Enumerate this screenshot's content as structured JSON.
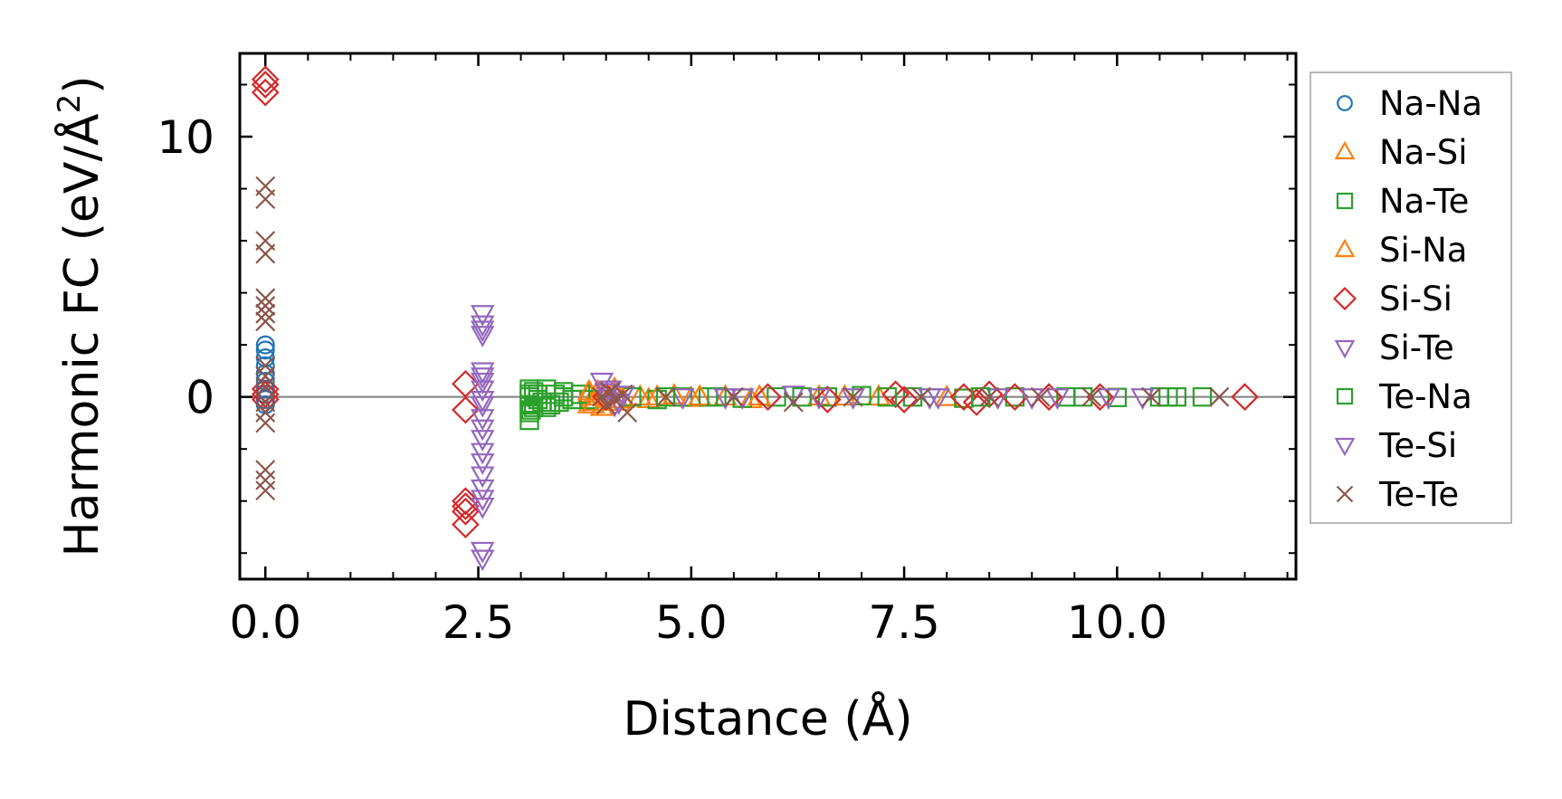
{
  "chart_data": {
    "type": "scatter",
    "title": "",
    "xlabel": "Distance (Å)",
    "ylabel_prefix": "Harmonic FC (eV/Å",
    "ylabel_superscript": "2",
    "ylabel_suffix": ")",
    "xlim": [
      -0.3,
      12.1
    ],
    "ylim": [
      -7.0,
      13.2
    ],
    "xticks": [
      0,
      2.5,
      5,
      7.5,
      10
    ],
    "xtick_labels": [
      "0.0",
      "2.5",
      "5.0",
      "7.5",
      "10.0"
    ],
    "yticks": [
      0,
      10
    ],
    "ytick_labels": [
      "0",
      "10"
    ],
    "y_minor_ticks": [
      -6,
      -4,
      -2,
      2,
      4,
      6,
      8,
      12
    ],
    "x_minor_step": 0.5,
    "grid": false,
    "zero_line": true,
    "legend_position": "outside right",
    "series": [
      {
        "name": "Na-Na",
        "marker": "circle",
        "color": "#1f77b4",
        "points": [
          [
            0,
            2.0
          ],
          [
            0,
            1.8
          ],
          [
            0,
            1.5
          ],
          [
            0,
            1.2
          ],
          [
            0,
            0.9
          ],
          [
            0,
            0.6
          ],
          [
            0,
            0.3
          ],
          [
            0,
            0.1
          ],
          [
            0,
            -0.1
          ],
          [
            0,
            -0.3
          ]
        ]
      },
      {
        "name": "Na-Si",
        "marker": "triangle-up",
        "color": "#ff7f0e",
        "points": [
          [
            3.8,
            0.1
          ],
          [
            3.8,
            -0.3
          ],
          [
            3.85,
            -0.2
          ],
          [
            3.9,
            0.2
          ],
          [
            3.95,
            -0.4
          ],
          [
            4.0,
            0.1
          ],
          [
            4.05,
            -0.1
          ],
          [
            4.1,
            0.3
          ],
          [
            4.15,
            -0.2
          ],
          [
            4.4,
            0.0
          ],
          [
            4.5,
            -0.1
          ],
          [
            4.8,
            0.05
          ],
          [
            5.0,
            -0.05
          ],
          [
            5.4,
            0.0
          ],
          [
            5.7,
            -0.1
          ],
          [
            6.5,
            0.0
          ],
          [
            7.2,
            0.0
          ],
          [
            8.0,
            -0.02
          ]
        ]
      },
      {
        "name": "Na-Te",
        "marker": "square",
        "color": "#2ca02c",
        "points": [
          [
            3.1,
            0.3
          ],
          [
            3.1,
            0.0
          ],
          [
            3.1,
            -0.3
          ],
          [
            3.1,
            -0.6
          ],
          [
            3.1,
            -0.9
          ],
          [
            3.15,
            0.2
          ],
          [
            3.15,
            -0.4
          ],
          [
            3.2,
            0.1
          ],
          [
            3.25,
            -0.2
          ],
          [
            3.3,
            0.3
          ],
          [
            3.35,
            -0.3
          ],
          [
            3.4,
            0.1
          ],
          [
            3.45,
            -0.2
          ],
          [
            3.5,
            0.2
          ],
          [
            3.6,
            -0.1
          ],
          [
            3.7,
            0.1
          ],
          [
            3.8,
            -0.1
          ],
          [
            4.3,
            0.0
          ],
          [
            4.6,
            -0.1
          ],
          [
            4.9,
            0.0
          ],
          [
            5.2,
            0.0
          ],
          [
            5.6,
            -0.05
          ],
          [
            6.0,
            0.0
          ],
          [
            6.6,
            0.0
          ],
          [
            7.0,
            0.05
          ],
          [
            7.6,
            0.0
          ],
          [
            8.2,
            -0.05
          ],
          [
            8.8,
            0.0
          ],
          [
            9.4,
            0.0
          ],
          [
            10.0,
            -0.02
          ],
          [
            10.5,
            0.0
          ],
          [
            10.7,
            0.0
          ],
          [
            11.0,
            0.0
          ]
        ]
      },
      {
        "name": "Si-Na",
        "marker": "triangle-up",
        "color": "#ff7f0e",
        "points": [
          [
            3.8,
            0.2
          ],
          [
            3.85,
            -0.3
          ],
          [
            3.9,
            0.0
          ],
          [
            4.0,
            -0.2
          ],
          [
            4.1,
            0.1
          ],
          [
            4.2,
            -0.1
          ],
          [
            4.6,
            0.0
          ],
          [
            5.1,
            0.0
          ],
          [
            5.8,
            0.0
          ],
          [
            6.8,
            0.0
          ]
        ]
      },
      {
        "name": "Si-Si",
        "marker": "diamond",
        "color": "#d62728",
        "points": [
          [
            0,
            12.2
          ],
          [
            0,
            12.0
          ],
          [
            0,
            11.7
          ],
          [
            0,
            0.3
          ],
          [
            0,
            0.1
          ],
          [
            0,
            -0.1
          ],
          [
            2.35,
            0.5
          ],
          [
            2.35,
            -0.5
          ],
          [
            2.35,
            -4.0
          ],
          [
            2.35,
            -4.2
          ],
          [
            2.35,
            -4.4
          ],
          [
            2.35,
            -4.9
          ],
          [
            4.0,
            0.0
          ],
          [
            5.9,
            0.0
          ],
          [
            6.6,
            -0.1
          ],
          [
            7.4,
            0.1
          ],
          [
            7.5,
            -0.1
          ],
          [
            8.2,
            0.0
          ],
          [
            8.35,
            -0.2
          ],
          [
            8.5,
            0.1
          ],
          [
            8.8,
            0.0
          ],
          [
            9.2,
            0.0
          ],
          [
            9.8,
            0.0
          ],
          [
            11.5,
            0.0
          ]
        ]
      },
      {
        "name": "Si-Te",
        "marker": "triangle-down",
        "color": "#9467bd",
        "points": [
          [
            2.55,
            3.2
          ],
          [
            2.55,
            2.8
          ],
          [
            2.55,
            2.4
          ],
          [
            2.55,
            1.0
          ],
          [
            2.55,
            0.6
          ],
          [
            2.55,
            0.3
          ],
          [
            2.55,
            -0.3
          ],
          [
            2.55,
            -0.8
          ],
          [
            2.55,
            -1.6
          ],
          [
            2.55,
            -2.1
          ],
          [
            2.55,
            -3.0
          ],
          [
            2.55,
            -3.5
          ],
          [
            2.55,
            -3.9
          ],
          [
            2.55,
            -5.9
          ],
          [
            2.55,
            -6.2
          ],
          [
            3.95,
            0.6
          ],
          [
            4.0,
            0.2
          ],
          [
            4.1,
            -0.3
          ],
          [
            4.2,
            0.1
          ],
          [
            4.9,
            0.0
          ],
          [
            5.6,
            0.0
          ],
          [
            6.2,
            0.1
          ],
          [
            6.9,
            0.0
          ],
          [
            7.8,
            0.0
          ],
          [
            8.6,
            0.0
          ],
          [
            9.3,
            0.0
          ],
          [
            10.3,
            0.0
          ]
        ]
      },
      {
        "name": "Te-Na",
        "marker": "square",
        "color": "#2ca02c",
        "points": [
          [
            3.1,
            0.1
          ],
          [
            3.12,
            -0.5
          ],
          [
            3.2,
            -0.1
          ],
          [
            3.3,
            -0.4
          ],
          [
            3.5,
            0.0
          ],
          [
            4.7,
            0.0
          ],
          [
            5.3,
            0.0
          ],
          [
            6.3,
            0.0
          ],
          [
            7.3,
            0.0
          ],
          [
            8.4,
            0.0
          ],
          [
            9.6,
            0.0
          ],
          [
            10.6,
            0.0
          ]
        ]
      },
      {
        "name": "Te-Si",
        "marker": "triangle-down",
        "color": "#9467bd",
        "points": [
          [
            2.55,
            2.6
          ],
          [
            2.55,
            0.8
          ],
          [
            2.55,
            -0.1
          ],
          [
            2.55,
            -1.2
          ],
          [
            2.55,
            -2.5
          ],
          [
            2.55,
            -4.2
          ],
          [
            4.05,
            0.3
          ],
          [
            4.15,
            -0.2
          ],
          [
            5.4,
            0.0
          ],
          [
            6.5,
            0.0
          ],
          [
            7.9,
            0.0
          ],
          [
            9.0,
            0.0
          ],
          [
            9.9,
            0.0
          ]
        ]
      },
      {
        "name": "Te-Te",
        "marker": "x",
        "color": "#8c564b",
        "points": [
          [
            0,
            8.1
          ],
          [
            0,
            7.6
          ],
          [
            0,
            6.0
          ],
          [
            0,
            5.5
          ],
          [
            0,
            3.8
          ],
          [
            0,
            3.5
          ],
          [
            0,
            3.2
          ],
          [
            0,
            2.9
          ],
          [
            0,
            1.2
          ],
          [
            0,
            0.8
          ],
          [
            0,
            0.4
          ],
          [
            0,
            -0.2
          ],
          [
            0,
            -0.6
          ],
          [
            0,
            -1.0
          ],
          [
            0,
            -2.8
          ],
          [
            0,
            -3.2
          ],
          [
            0,
            -3.6
          ],
          [
            3.95,
            0.0
          ],
          [
            4.0,
            -0.3
          ],
          [
            4.05,
            0.2
          ],
          [
            4.1,
            -0.1
          ],
          [
            4.2,
            0.1
          ],
          [
            4.25,
            -0.6
          ],
          [
            4.7,
            0.0
          ],
          [
            5.5,
            0.0
          ],
          [
            6.2,
            -0.2
          ],
          [
            6.9,
            0.0
          ],
          [
            7.7,
            0.0
          ],
          [
            8.5,
            0.0
          ],
          [
            9.1,
            0.0
          ],
          [
            9.7,
            0.0
          ],
          [
            10.4,
            0.0
          ],
          [
            11.2,
            0.0
          ]
        ]
      }
    ]
  }
}
